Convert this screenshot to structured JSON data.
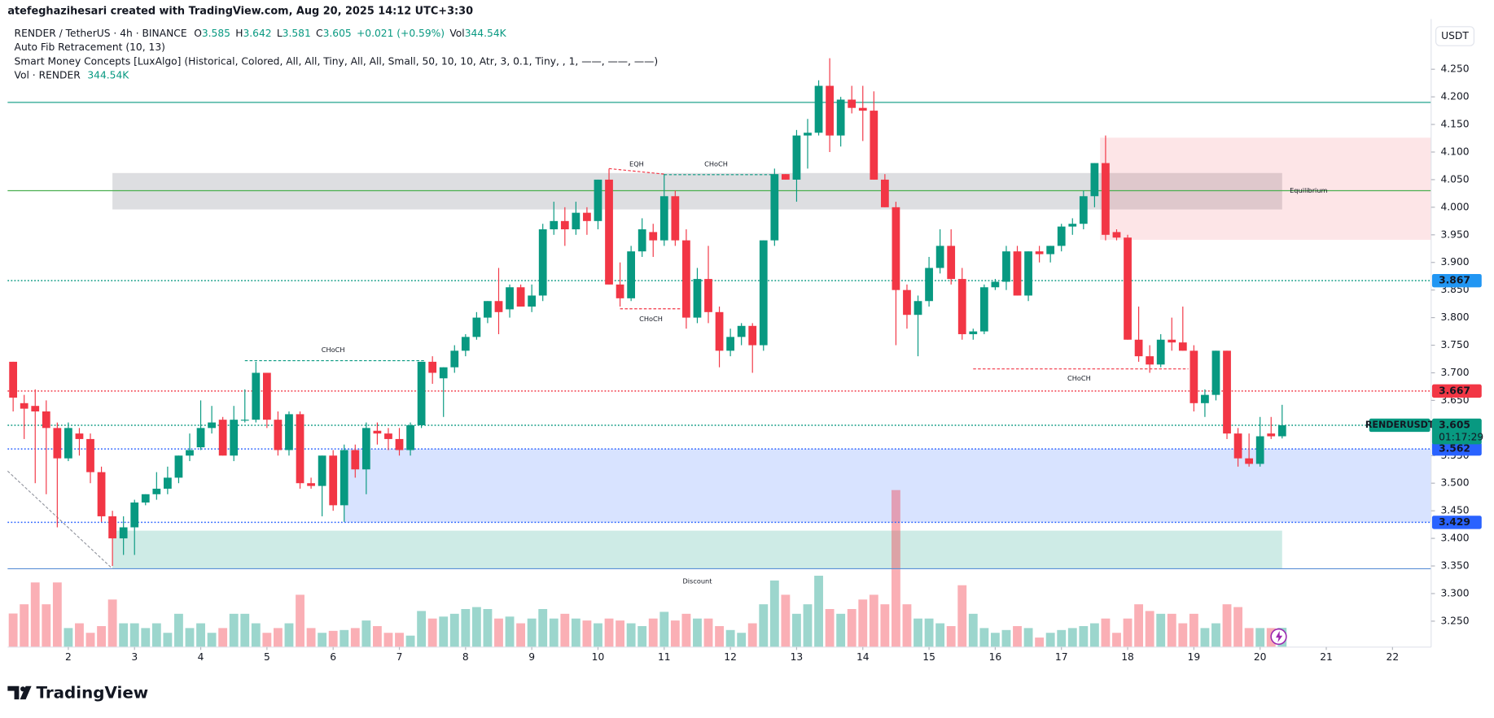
{
  "header": {
    "credit": "atefeghazihesari created with TradingView.com, Aug 20, 2025 14:12 UTC+3:30"
  },
  "footer": {
    "brand": "TradingView"
  },
  "chart_data": {
    "type": "candlestick",
    "legend": {
      "symbol": "RENDER / TetherUS · 4h · BINANCE",
      "ohlc": [
        {
          "label": "O",
          "value": 3.585
        },
        {
          "label": "H",
          "value": 3.642
        },
        {
          "label": "L",
          "value": 3.581
        },
        {
          "label": "C",
          "value": 3.605
        }
      ],
      "change": "+0.021 (+0.59%)",
      "vol_label": "Vol",
      "vol_value": "344.54K"
    },
    "indicators": [
      "Auto Fib Retracement (10, 13)",
      "Smart Money Concepts [LuxAlgo] (Historical, Colored, All, All, Tiny, All, All, Small, 50, 10, 10, Atr, 3, 0.1, Tiny, , 1, ——, ——, ——)"
    ],
    "volume_legend": {
      "label": "Vol · RENDER",
      "value": "344.54K"
    },
    "currency": "USDT",
    "up_color": "#089981",
    "down_color": "#f23645",
    "grid": false,
    "x": [
      0,
      1,
      2,
      3,
      4,
      5,
      6,
      7,
      8,
      9,
      10,
      11,
      12,
      13,
      14,
      15,
      16,
      17,
      18,
      19,
      20,
      21,
      22,
      23,
      24,
      25,
      26,
      27,
      28,
      29,
      30,
      31,
      32,
      33,
      34,
      35,
      36,
      37,
      38,
      39,
      40,
      41,
      42,
      43,
      44,
      45,
      46,
      47,
      48,
      49,
      50,
      51,
      52,
      53,
      54,
      55,
      56,
      57,
      58,
      59,
      60,
      61,
      62,
      63,
      64,
      65,
      66,
      67,
      68,
      69,
      70,
      71,
      72,
      73,
      74,
      75,
      76,
      77,
      78,
      79,
      80,
      81,
      82,
      83,
      84,
      85,
      86,
      87,
      88,
      89,
      90,
      91,
      92,
      93,
      94,
      95,
      96,
      97,
      98,
      99,
      100,
      101,
      102,
      103,
      104,
      105,
      106,
      107,
      108,
      109,
      110,
      111,
      112,
      113,
      114,
      115
    ],
    "open": [
      3.72,
      3.645,
      3.64,
      3.63,
      3.6,
      3.545,
      3.59,
      3.58,
      3.52,
      3.44,
      3.4,
      3.42,
      3.465,
      3.48,
      3.49,
      3.51,
      3.55,
      3.565,
      3.6,
      3.615,
      3.55,
      3.615,
      3.615,
      3.7,
      3.615,
      3.56,
      3.625,
      3.5,
      3.495,
      3.55,
      3.46,
      3.56,
      3.525,
      3.595,
      3.59,
      3.58,
      3.56,
      3.605,
      3.72,
      3.69,
      3.71,
      3.74,
      3.765,
      3.8,
      3.83,
      3.815,
      3.855,
      3.82,
      3.84,
      3.96,
      3.975,
      3.96,
      3.99,
      3.975,
      4.05,
      3.86,
      3.835,
      3.92,
      3.955,
      3.94,
      4.02,
      3.94,
      3.8,
      3.87,
      3.81,
      3.74,
      3.765,
      3.785,
      3.75,
      3.94,
      4.06,
      4.05,
      4.13,
      4.135,
      4.22,
      4.13,
      4.195,
      4.18,
      4.175,
      4.05,
      4.0,
      3.85,
      3.805,
      3.83,
      3.89,
      3.93,
      3.87,
      3.77,
      3.775,
      3.855,
      3.865,
      3.92,
      3.84,
      3.92,
      3.915,
      3.93,
      3.965,
      3.97,
      4.02,
      4.08,
      3.955,
      3.945,
      3.76,
      3.73,
      3.715,
      3.76,
      3.755,
      3.74,
      3.645,
      3.66,
      3.74,
      3.59,
      3.545,
      3.535,
      3.59,
      3.585
    ],
    "high": [
      3.72,
      3.66,
      3.67,
      3.65,
      3.61,
      3.61,
      3.6,
      3.59,
      3.53,
      3.45,
      3.44,
      3.47,
      3.48,
      3.52,
      3.53,
      3.55,
      3.59,
      3.65,
      3.64,
      3.62,
      3.64,
      3.67,
      3.72,
      3.7,
      3.63,
      3.63,
      3.63,
      3.51,
      3.55,
      3.56,
      3.57,
      3.57,
      3.61,
      3.61,
      3.6,
      3.6,
      3.61,
      3.72,
      3.73,
      3.71,
      3.75,
      3.77,
      3.81,
      3.83,
      3.89,
      3.86,
      3.86,
      3.86,
      3.97,
      4.01,
      4.0,
      4.01,
      4.0,
      4.05,
      4.07,
      3.9,
      3.93,
      3.98,
      3.97,
      4.06,
      4.03,
      3.96,
      3.89,
      3.93,
      3.82,
      3.78,
      3.79,
      3.79,
      3.94,
      4.07,
      4.06,
      4.14,
      4.16,
      4.23,
      4.27,
      4.2,
      4.22,
      4.22,
      4.21,
      4.06,
      4.01,
      3.86,
      3.84,
      3.91,
      3.96,
      3.96,
      3.89,
      3.78,
      3.86,
      3.87,
      3.93,
      3.93,
      3.92,
      3.93,
      3.93,
      3.97,
      3.98,
      4.03,
      4.08,
      4.13,
      3.96,
      3.95,
      3.82,
      3.75,
      3.77,
      3.8,
      3.82,
      3.75,
      3.67,
      3.74,
      3.74,
      3.6,
      3.59,
      3.62,
      3.62,
      3.642
    ],
    "low": [
      3.63,
      3.58,
      3.5,
      3.48,
      3.42,
      3.54,
      3.55,
      3.5,
      3.43,
      3.35,
      3.37,
      3.37,
      3.46,
      3.47,
      3.48,
      3.5,
      3.54,
      3.56,
      3.59,
      3.55,
      3.54,
      3.61,
      3.61,
      3.6,
      3.55,
      3.55,
      3.49,
      3.49,
      3.44,
      3.45,
      3.43,
      3.51,
      3.48,
      3.57,
      3.56,
      3.55,
      3.55,
      3.6,
      3.68,
      3.62,
      3.7,
      3.73,
      3.76,
      3.79,
      3.77,
      3.8,
      3.82,
      3.81,
      3.83,
      3.95,
      3.93,
      3.95,
      3.95,
      3.96,
      3.86,
      3.82,
      3.83,
      3.91,
      3.91,
      3.93,
      3.93,
      3.78,
      3.79,
      3.79,
      3.71,
      3.73,
      3.75,
      3.7,
      3.74,
      3.93,
      4.05,
      4.01,
      4.07,
      4.13,
      4.1,
      4.11,
      4.17,
      4.12,
      4.05,
      4.0,
      3.75,
      3.78,
      3.73,
      3.82,
      3.88,
      3.86,
      3.76,
      3.76,
      3.77,
      3.85,
      3.85,
      3.84,
      3.83,
      3.9,
      3.9,
      3.92,
      3.95,
      3.96,
      4.0,
      3.94,
      3.94,
      3.76,
      3.72,
      3.7,
      3.71,
      3.74,
      3.74,
      3.63,
      3.62,
      3.65,
      3.58,
      3.53,
      3.53,
      3.53,
      3.58,
      3.581
    ],
    "close": [
      3.655,
      3.635,
      3.63,
      3.6,
      3.545,
      3.6,
      3.58,
      3.52,
      3.44,
      3.4,
      3.42,
      3.465,
      3.48,
      3.49,
      3.51,
      3.55,
      3.56,
      3.6,
      3.61,
      3.55,
      3.615,
      3.615,
      3.7,
      3.615,
      3.56,
      3.625,
      3.5,
      3.495,
      3.55,
      3.46,
      3.56,
      3.525,
      3.6,
      3.59,
      3.58,
      3.56,
      3.605,
      3.72,
      3.7,
      3.71,
      3.74,
      3.765,
      3.8,
      3.83,
      3.81,
      3.855,
      3.82,
      3.84,
      3.96,
      3.975,
      3.96,
      3.99,
      3.975,
      4.05,
      3.86,
      3.835,
      3.92,
      3.96,
      3.94,
      4.02,
      3.94,
      3.8,
      3.87,
      3.81,
      3.74,
      3.765,
      3.785,
      3.75,
      3.94,
      4.06,
      4.05,
      4.13,
      4.135,
      4.22,
      4.13,
      4.195,
      4.18,
      4.175,
      4.05,
      4.0,
      3.85,
      3.805,
      3.83,
      3.89,
      3.93,
      3.87,
      3.77,
      3.775,
      3.855,
      3.865,
      3.92,
      3.84,
      3.92,
      3.915,
      3.93,
      3.965,
      3.97,
      4.02,
      4.08,
      3.95,
      3.945,
      3.76,
      3.73,
      3.715,
      3.76,
      3.755,
      3.74,
      3.645,
      3.66,
      3.74,
      3.59,
      3.545,
      3.535,
      3.585,
      3.585,
      3.605
    ],
    "volume": [
      600,
      765,
      1155,
      765,
      1155,
      340,
      425,
      255,
      375,
      850,
      425,
      425,
      340,
      425,
      255,
      595,
      340,
      425,
      255,
      340,
      595,
      595,
      425,
      255,
      340,
      425,
      935,
      340,
      255,
      290,
      305,
      340,
      475,
      375,
      255,
      255,
      205,
      645,
      510,
      545,
      595,
      680,
      715,
      680,
      510,
      545,
      425,
      510,
      680,
      510,
      595,
      510,
      475,
      425,
      510,
      475,
      425,
      375,
      510,
      630,
      475,
      595,
      510,
      510,
      375,
      305,
      255,
      425,
      765,
      1190,
      935,
      595,
      765,
      1275,
      680,
      595,
      680,
      850,
      935,
      765,
      2805,
      765,
      510,
      510,
      425,
      375,
      1105,
      595,
      340,
      255,
      305,
      375,
      340,
      170,
      255,
      305,
      340,
      375,
      425,
      510,
      255,
      510,
      765,
      645,
      595,
      595,
      425,
      595,
      340,
      425,
      765,
      715,
      340,
      340,
      340,
      344.54
    ],
    "xlim": [
      -0.5,
      128.5
    ],
    "ylim": [
      3.203,
      4.341
    ],
    "yticks": [
      {
        "value": 3.25,
        "label": "3.250"
      },
      {
        "value": 3.3,
        "label": "3.300"
      },
      {
        "value": 3.35,
        "label": "3.350"
      },
      {
        "value": 3.4,
        "label": "3.400"
      },
      {
        "value": 3.45,
        "label": "3.450"
      },
      {
        "value": 3.5,
        "label": "3.500"
      },
      {
        "value": 3.55,
        "label": "3.550"
      },
      {
        "value": 3.6,
        "label": "3.600"
      },
      {
        "value": 3.65,
        "label": "3.650"
      },
      {
        "value": 3.7,
        "label": "3.700"
      },
      {
        "value": 3.75,
        "label": "3.750"
      },
      {
        "value": 3.8,
        "label": "3.800"
      },
      {
        "value": 3.85,
        "label": "3.850"
      },
      {
        "value": 3.9,
        "label": "3.900"
      },
      {
        "value": 3.95,
        "label": "3.950"
      },
      {
        "value": 4.0,
        "label": "4.000"
      },
      {
        "value": 4.05,
        "label": "4.050"
      },
      {
        "value": 4.1,
        "label": "4.100"
      },
      {
        "value": 4.15,
        "label": "4.150"
      },
      {
        "value": 4.2,
        "label": "4.200"
      },
      {
        "value": 4.25,
        "label": "4.250"
      }
    ],
    "xticks": [
      {
        "value": 5,
        "label": "2"
      },
      {
        "value": 11,
        "label": "3"
      },
      {
        "value": 17,
        "label": "4"
      },
      {
        "value": 23,
        "label": "5"
      },
      {
        "value": 29,
        "label": "6"
      },
      {
        "value": 35,
        "label": "7"
      },
      {
        "value": 41,
        "label": "8"
      },
      {
        "value": 47,
        "label": "9"
      },
      {
        "value": 53,
        "label": "10"
      },
      {
        "value": 59,
        "label": "11"
      },
      {
        "value": 65,
        "label": "12"
      },
      {
        "value": 71,
        "label": "13"
      },
      {
        "value": 77,
        "label": "14"
      },
      {
        "value": 83,
        "label": "15"
      },
      {
        "value": 89,
        "label": "16"
      },
      {
        "value": 95,
        "label": "17"
      },
      {
        "value": 101,
        "label": "18"
      },
      {
        "value": 107,
        "label": "19"
      },
      {
        "value": 113,
        "label": "20"
      },
      {
        "value": 119,
        "label": "21"
      },
      {
        "value": 125,
        "label": "22"
      }
    ],
    "zones": [
      {
        "x": [
          9,
          115
        ],
        "y": [
          3.996,
          4.062
        ],
        "color": "rgba(120,123,134,0.25)"
      },
      {
        "x": [
          98.5,
          128.5
        ],
        "y": [
          3.941,
          4.126
        ],
        "color": "rgba(242,54,69,0.13)"
      },
      {
        "x": [
          30,
          128.5
        ],
        "y": [
          3.429,
          3.562
        ],
        "color": "rgba(41,98,255,0.18)"
      },
      {
        "x": [
          9,
          115
        ],
        "y": [
          3.345,
          3.414
        ],
        "color": "rgba(8,153,129,0.2)"
      }
    ],
    "levels": [
      {
        "value": 4.19,
        "color": "#089981",
        "style": "solid"
      },
      {
        "value": 4.03,
        "color": "#4caf50",
        "style": "solid"
      },
      {
        "value": 3.867,
        "color": "#089981",
        "style": "dotted"
      },
      {
        "value": 3.667,
        "color": "#f23645",
        "style": "dotted"
      },
      {
        "value": 3.605,
        "color": "#089981",
        "style": "dotted"
      },
      {
        "value": 3.562,
        "color": "#2962ff",
        "style": "dotted"
      },
      {
        "value": 3.429,
        "color": "#2962ff",
        "style": "dotted"
      },
      {
        "value": 3.345,
        "color": "#5b8fd6",
        "style": "solid"
      }
    ],
    "structure_lines": [
      {
        "x": [
          21,
          37.3
        ],
        "y": [
          3.722,
          3.722
        ],
        "color": "#089981"
      },
      {
        "x": [
          54,
          59
        ],
        "y": [
          4.07,
          4.06
        ],
        "color": "#f23645"
      },
      {
        "x": [
          59,
          69
        ],
        "y": [
          4.059,
          4.059
        ],
        "color": "#089981"
      },
      {
        "x": [
          55,
          60.5
        ],
        "y": [
          3.816,
          3.816
        ],
        "color": "#f23645"
      },
      {
        "x": [
          87,
          106.5
        ],
        "y": [
          3.707,
          3.707
        ],
        "color": "#f23645"
      },
      {
        "x": [
          -0.5,
          9
        ],
        "y": [
          3.522,
          3.345
        ],
        "color": "#9598a1"
      }
    ],
    "annotations": [
      {
        "text": "CHoCH",
        "x": 29,
        "y": 3.741,
        "color": "#089981"
      },
      {
        "text": "EQH",
        "x": 56.5,
        "y": 4.078,
        "color": "#f23645"
      },
      {
        "text": "CHoCH",
        "x": 63.7,
        "y": 4.078,
        "color": "#089981"
      },
      {
        "text": "CHoCH",
        "x": 57.8,
        "y": 3.797,
        "color": "#f23645"
      },
      {
        "text": "CHoCH",
        "x": 96.6,
        "y": 3.69,
        "color": "#f23645"
      },
      {
        "text": "Equilibrium",
        "x": 117.4,
        "y": 4.03,
        "color": "#b2b5be"
      },
      {
        "text": "Discount",
        "x": 62,
        "y": 3.322,
        "color": "#089981"
      }
    ],
    "price_tags": [
      {
        "value": 3.867,
        "color": "#2196f3"
      },
      {
        "value": 3.667,
        "color": "#f23645"
      },
      {
        "value": 3.562,
        "color": "#2962ff"
      },
      {
        "value": 3.429,
        "color": "#2962ff"
      }
    ],
    "last_price": {
      "symbol": "RENDERUSDT",
      "value": 3.605,
      "countdown": "01:17:29",
      "color": "#089981"
    }
  }
}
